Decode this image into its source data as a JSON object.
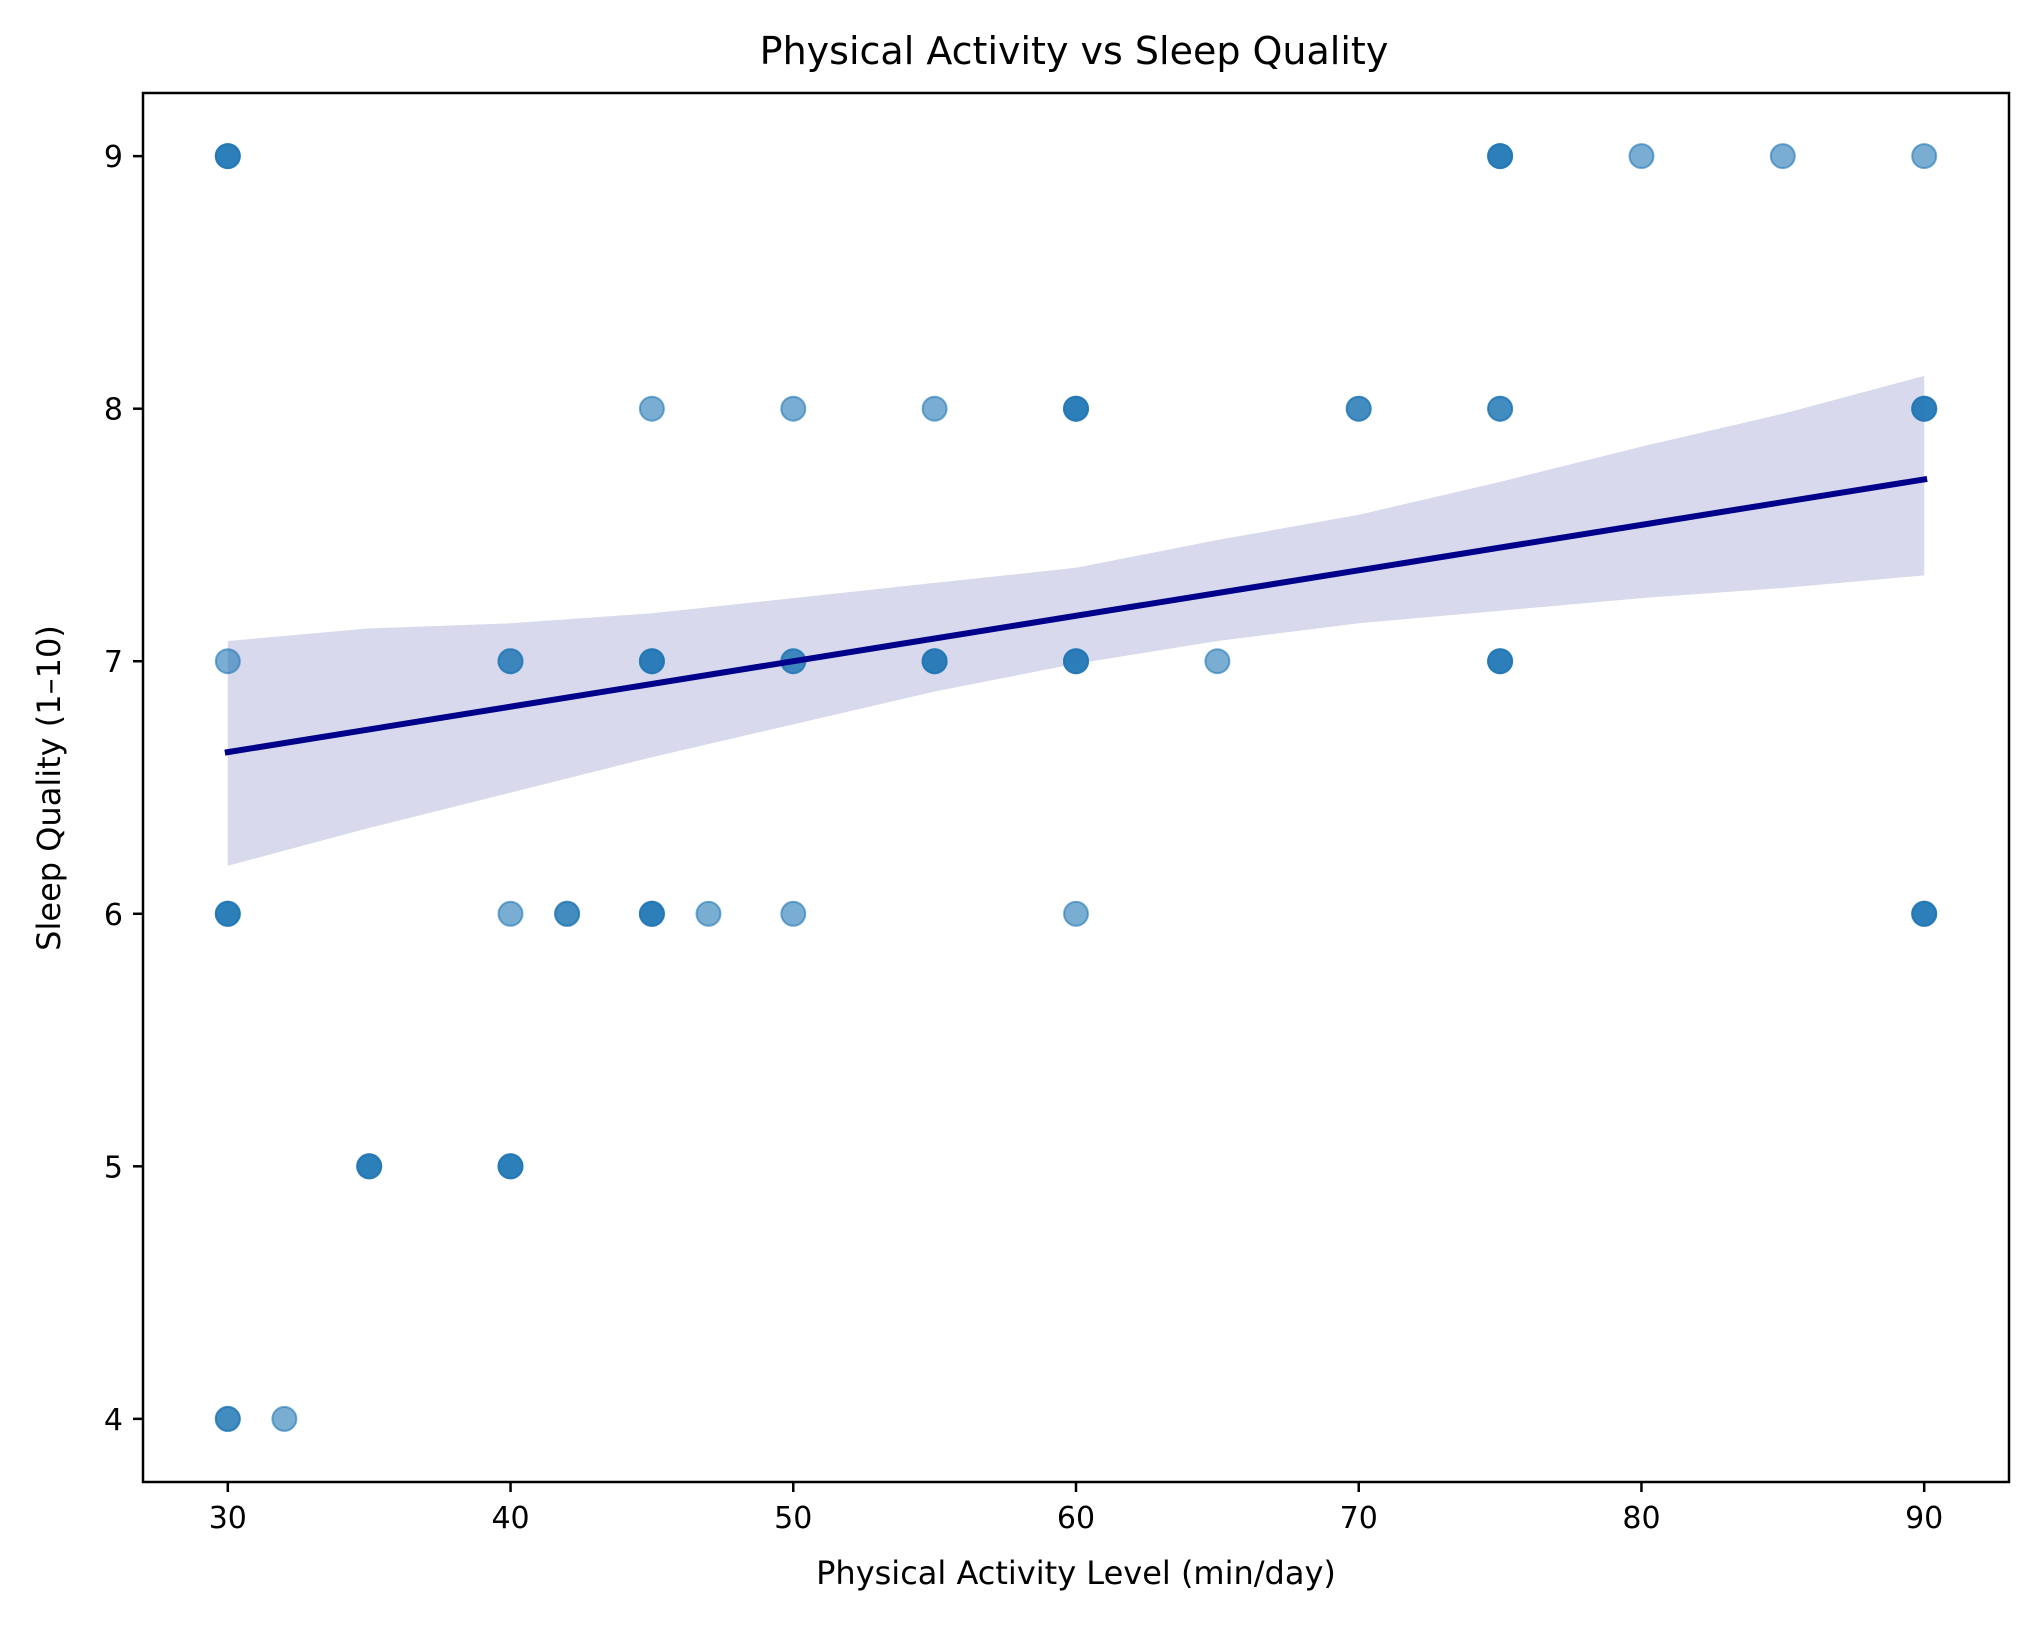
{
  "chart_data": {
    "type": "scatter",
    "title": "Physical Activity vs Sleep Quality",
    "xlabel": "Physical Activity Level (min/day)",
    "ylabel": "Sleep Quality (1–10)",
    "xlim": [
      27,
      93
    ],
    "ylim": [
      3.75,
      9.25
    ],
    "xticks": [
      30,
      40,
      50,
      60,
      70,
      80,
      90
    ],
    "yticks": [
      4,
      5,
      6,
      7,
      8,
      9
    ],
    "grid": false,
    "legend": "none",
    "point_color": "#1f77b4",
    "fit_line_color": "#00008b",
    "ci_band_color": "#d8d9ec",
    "points": [
      {
        "x": 30,
        "y": 9,
        "n": 3
      },
      {
        "x": 75,
        "y": 9,
        "n": 3
      },
      {
        "x": 80,
        "y": 9,
        "n": 1
      },
      {
        "x": 85,
        "y": 9,
        "n": 1
      },
      {
        "x": 90,
        "y": 9,
        "n": 1
      },
      {
        "x": 45,
        "y": 8,
        "n": 1
      },
      {
        "x": 50,
        "y": 8,
        "n": 1
      },
      {
        "x": 55,
        "y": 8,
        "n": 1
      },
      {
        "x": 60,
        "y": 8,
        "n": 3
      },
      {
        "x": 70,
        "y": 8,
        "n": 2
      },
      {
        "x": 75,
        "y": 8,
        "n": 2
      },
      {
        "x": 90,
        "y": 8,
        "n": 3
      },
      {
        "x": 30,
        "y": 7,
        "n": 1
      },
      {
        "x": 40,
        "y": 7,
        "n": 2
      },
      {
        "x": 45,
        "y": 7,
        "n": 3
      },
      {
        "x": 50,
        "y": 7,
        "n": 2
      },
      {
        "x": 55,
        "y": 7,
        "n": 3
      },
      {
        "x": 60,
        "y": 7,
        "n": 3
      },
      {
        "x": 65,
        "y": 7,
        "n": 1
      },
      {
        "x": 75,
        "y": 7,
        "n": 3
      },
      {
        "x": 30,
        "y": 6,
        "n": 3
      },
      {
        "x": 40,
        "y": 6,
        "n": 1
      },
      {
        "x": 42,
        "y": 6,
        "n": 2
      },
      {
        "x": 45,
        "y": 6,
        "n": 3
      },
      {
        "x": 47,
        "y": 6,
        "n": 1
      },
      {
        "x": 50,
        "y": 6,
        "n": 1
      },
      {
        "x": 60,
        "y": 6,
        "n": 1
      },
      {
        "x": 90,
        "y": 6,
        "n": 3
      },
      {
        "x": 35,
        "y": 5,
        "n": 3
      },
      {
        "x": 40,
        "y": 5,
        "n": 3
      },
      {
        "x": 30,
        "y": 4,
        "n": 2
      },
      {
        "x": 32,
        "y": 4,
        "n": 1
      }
    ],
    "regression": {
      "x": [
        30,
        90
      ],
      "y": [
        6.64,
        7.72
      ]
    },
    "confidence_band": {
      "x": [
        30,
        35,
        40,
        45,
        50,
        55,
        60,
        65,
        70,
        75,
        80,
        85,
        90
      ],
      "lower": [
        6.19,
        6.34,
        6.48,
        6.62,
        6.75,
        6.88,
        6.99,
        7.08,
        7.15,
        7.2,
        7.25,
        7.29,
        7.34
      ],
      "upper": [
        7.08,
        7.13,
        7.15,
        7.19,
        7.25,
        7.31,
        7.37,
        7.48,
        7.58,
        7.71,
        7.85,
        7.98,
        8.13
      ]
    }
  }
}
